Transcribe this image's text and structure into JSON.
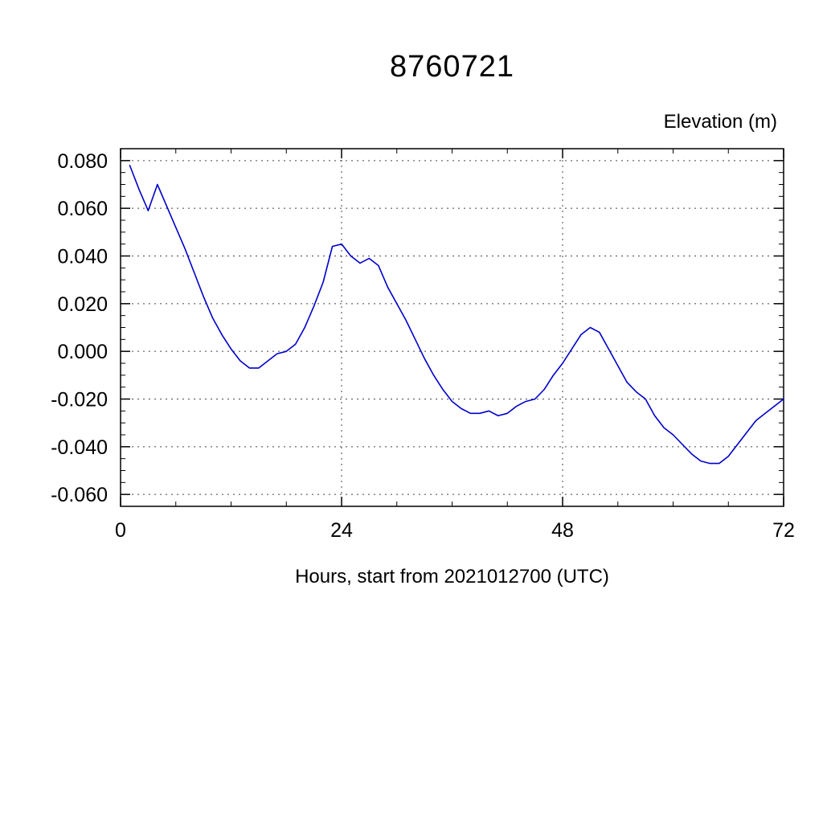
{
  "chart_data": {
    "type": "line",
    "title": "8760721",
    "ylabel": "Elevation (m)",
    "xlabel": "Hours, start from 2021012700 (UTC)",
    "xlim": [
      0,
      72
    ],
    "ylim": [
      -0.065,
      0.085
    ],
    "x_major_ticks": [
      0,
      24,
      48,
      72
    ],
    "x_tick_labels": [
      "0",
      "24",
      "48",
      "72"
    ],
    "x_minor_step": 6,
    "y_major_ticks": [
      -0.06,
      -0.04,
      -0.02,
      0.0,
      0.02,
      0.04,
      0.06,
      0.08
    ],
    "y_tick_labels": [
      "-0.060",
      "-0.040",
      "-0.020",
      "0.000",
      "0.020",
      "0.040",
      "0.060",
      "0.080"
    ],
    "y_minor_step": 0.005,
    "grid": true,
    "grid_x_values": [
      24,
      48
    ],
    "grid_color": "#444444",
    "axis_color": "#000000",
    "line_color": "#0000cc",
    "legend_position": "none",
    "series": [
      {
        "name": "elevation",
        "x": [
          1,
          2,
          3,
          4,
          5,
          6,
          7,
          8,
          9,
          10,
          11,
          12,
          13,
          14,
          15,
          16,
          17,
          18,
          19,
          20,
          21,
          22,
          23,
          24,
          25,
          26,
          27,
          28,
          29,
          30,
          31,
          32,
          33,
          34,
          35,
          36,
          37,
          38,
          39,
          40,
          41,
          42,
          43,
          44,
          45,
          46,
          47,
          48,
          49,
          50,
          51,
          52,
          53,
          54,
          55,
          56,
          57,
          58,
          59,
          60,
          61,
          62,
          63,
          64,
          65,
          66,
          67,
          68,
          69,
          70,
          71,
          72
        ],
        "y": [
          0.078,
          0.068,
          0.059,
          0.07,
          0.061,
          0.052,
          0.043,
          0.033,
          0.023,
          0.014,
          0.007,
          0.001,
          -0.004,
          -0.007,
          -0.007,
          -0.004,
          -0.001,
          0.0,
          0.003,
          0.01,
          0.019,
          0.029,
          0.044,
          0.045,
          0.04,
          0.037,
          0.039,
          0.036,
          0.027,
          0.02,
          0.013,
          0.005,
          -0.003,
          -0.01,
          -0.016,
          -0.021,
          -0.024,
          -0.026,
          -0.026,
          -0.025,
          -0.027,
          -0.026,
          -0.023,
          -0.021,
          -0.02,
          -0.016,
          -0.01,
          -0.005,
          0.001,
          0.007,
          0.01,
          0.008,
          0.001,
          -0.006,
          -0.013,
          -0.017,
          -0.02,
          -0.027,
          -0.032,
          -0.035,
          -0.039,
          -0.043,
          -0.046,
          -0.047,
          -0.047,
          -0.044,
          -0.039,
          -0.034,
          -0.029,
          -0.026,
          -0.023,
          -0.02
        ]
      }
    ]
  }
}
